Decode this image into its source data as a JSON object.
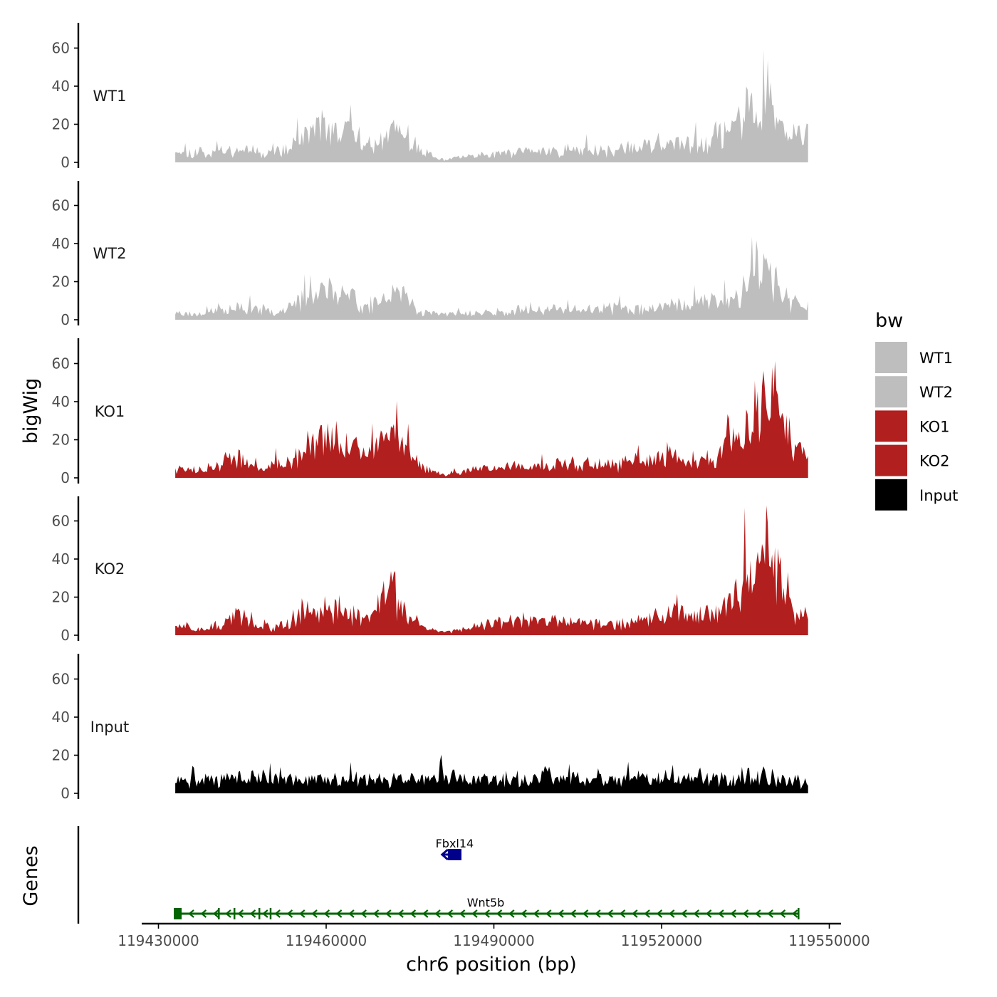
{
  "chart_data": {
    "type": "area",
    "title": "",
    "ylabel": "bigWig",
    "xlabel": "chr6 position (bp)",
    "ylim": [
      0,
      72
    ],
    "yticks": [
      0,
      20,
      40,
      60
    ],
    "xlim": [
      119425000,
      119550000
    ],
    "xticks": [
      119430000,
      119460000,
      119490000,
      119520000,
      119550000
    ],
    "xtick_labels": [
      "119430000",
      "119460000",
      "119490000",
      "119520000",
      "119550000"
    ],
    "data_range": [
      119433000,
      119546200
    ],
    "legend_title": "bw",
    "series": [
      {
        "name": "WT1",
        "color": "#bebebe",
        "profile": [
          [
            0,
            8
          ],
          [
            0.01,
            5
          ],
          [
            0.05,
            5
          ],
          [
            0.1,
            7
          ],
          [
            0.14,
            6
          ],
          [
            0.18,
            6
          ],
          [
            0.2,
            14
          ],
          [
            0.235,
            19
          ],
          [
            0.245,
            14
          ],
          [
            0.27,
            16
          ],
          [
            0.29,
            11
          ],
          [
            0.3,
            7
          ],
          [
            0.32,
            13
          ],
          [
            0.345,
            18
          ],
          [
            0.36,
            13
          ],
          [
            0.38,
            8
          ],
          [
            0.41,
            2
          ],
          [
            0.43,
            1
          ],
          [
            0.45,
            3
          ],
          [
            0.5,
            4
          ],
          [
            0.55,
            6
          ],
          [
            0.6,
            6
          ],
          [
            0.65,
            7
          ],
          [
            0.7,
            6
          ],
          [
            0.75,
            9
          ],
          [
            0.8,
            9
          ],
          [
            0.85,
            13
          ],
          [
            0.88,
            16
          ],
          [
            0.905,
            24
          ],
          [
            0.93,
            30
          ],
          [
            0.945,
            24
          ],
          [
            0.96,
            15
          ],
          [
            0.98,
            12
          ],
          [
            1,
            14
          ]
        ],
        "spikes": [
          [
            0.235,
            25
          ],
          [
            0.27,
            22
          ],
          [
            0.345,
            23
          ],
          [
            0.91,
            38
          ],
          [
            0.935,
            37
          ],
          [
            0.96,
            24
          ],
          [
            1,
            20
          ]
        ],
        "seed": 11
      },
      {
        "name": "WT2",
        "color": "#bebebe",
        "profile": [
          [
            0,
            4
          ],
          [
            0.03,
            3
          ],
          [
            0.05,
            4
          ],
          [
            0.1,
            6
          ],
          [
            0.14,
            5
          ],
          [
            0.18,
            5
          ],
          [
            0.2,
            11
          ],
          [
            0.235,
            14
          ],
          [
            0.26,
            14
          ],
          [
            0.28,
            12
          ],
          [
            0.3,
            6
          ],
          [
            0.32,
            10
          ],
          [
            0.345,
            13
          ],
          [
            0.37,
            10
          ],
          [
            0.39,
            4
          ],
          [
            0.42,
            3
          ],
          [
            0.45,
            3
          ],
          [
            0.5,
            4
          ],
          [
            0.55,
            4
          ],
          [
            0.6,
            5
          ],
          [
            0.65,
            5
          ],
          [
            0.7,
            6
          ],
          [
            0.75,
            6
          ],
          [
            0.8,
            8
          ],
          [
            0.85,
            10
          ],
          [
            0.88,
            11
          ],
          [
            0.905,
            18
          ],
          [
            0.93,
            25
          ],
          [
            0.945,
            20
          ],
          [
            0.965,
            11
          ],
          [
            0.98,
            7
          ],
          [
            1,
            5
          ]
        ],
        "spikes": [
          [
            0.235,
            20
          ],
          [
            0.28,
            17
          ],
          [
            0.345,
            16
          ],
          [
            0.935,
            35
          ],
          [
            0.95,
            28
          ],
          [
            0.98,
            14
          ]
        ],
        "seed": 23
      },
      {
        "name": "KO1",
        "color": "#b21f1f",
        "profile": [
          [
            0,
            6
          ],
          [
            0.03,
            3
          ],
          [
            0.05,
            5
          ],
          [
            0.08,
            7
          ],
          [
            0.1,
            10
          ],
          [
            0.12,
            6
          ],
          [
            0.14,
            5
          ],
          [
            0.18,
            8
          ],
          [
            0.2,
            15
          ],
          [
            0.23,
            20
          ],
          [
            0.26,
            17
          ],
          [
            0.3,
            13
          ],
          [
            0.33,
            16
          ],
          [
            0.345,
            22
          ],
          [
            0.37,
            12
          ],
          [
            0.4,
            4
          ],
          [
            0.42,
            2
          ],
          [
            0.45,
            3
          ],
          [
            0.5,
            5
          ],
          [
            0.55,
            6
          ],
          [
            0.6,
            7
          ],
          [
            0.65,
            7
          ],
          [
            0.7,
            7
          ],
          [
            0.75,
            9
          ],
          [
            0.8,
            11
          ],
          [
            0.83,
            9
          ],
          [
            0.85,
            8
          ],
          [
            0.87,
            16
          ],
          [
            0.9,
            26
          ],
          [
            0.93,
            36
          ],
          [
            0.955,
            28
          ],
          [
            0.97,
            16
          ],
          [
            0.99,
            12
          ],
          [
            1,
            9
          ]
        ],
        "spikes": [
          [
            0.23,
            28
          ],
          [
            0.345,
            30
          ],
          [
            0.08,
            14
          ],
          [
            0.93,
            56
          ],
          [
            0.95,
            46
          ],
          [
            0.985,
            20
          ]
        ],
        "seed": 37
      },
      {
        "name": "KO2",
        "color": "#b21f1f",
        "profile": [
          [
            0,
            5
          ],
          [
            0.03,
            4
          ],
          [
            0.05,
            4
          ],
          [
            0.08,
            7
          ],
          [
            0.1,
            10
          ],
          [
            0.12,
            6
          ],
          [
            0.14,
            4
          ],
          [
            0.18,
            5
          ],
          [
            0.2,
            11
          ],
          [
            0.23,
            15
          ],
          [
            0.26,
            14
          ],
          [
            0.29,
            10
          ],
          [
            0.31,
            12
          ],
          [
            0.345,
            22
          ],
          [
            0.365,
            12
          ],
          [
            0.39,
            5
          ],
          [
            0.42,
            2
          ],
          [
            0.45,
            3
          ],
          [
            0.5,
            6
          ],
          [
            0.55,
            7
          ],
          [
            0.6,
            7
          ],
          [
            0.65,
            6
          ],
          [
            0.7,
            6
          ],
          [
            0.75,
            8
          ],
          [
            0.8,
            12
          ],
          [
            0.83,
            10
          ],
          [
            0.85,
            10
          ],
          [
            0.88,
            18
          ],
          [
            0.91,
            32
          ],
          [
            0.935,
            40
          ],
          [
            0.955,
            30
          ],
          [
            0.97,
            14
          ],
          [
            0.99,
            10
          ],
          [
            1,
            11
          ]
        ],
        "spikes": [
          [
            0.345,
            33
          ],
          [
            0.1,
            14
          ],
          [
            0.935,
            70
          ],
          [
            0.92,
            44
          ],
          [
            0.79,
            17
          ],
          [
            0.84,
            17
          ]
        ],
        "seed": 51
      },
      {
        "name": "Input",
        "color": "#000000",
        "profile": [
          [
            0,
            6
          ],
          [
            0.05,
            7
          ],
          [
            0.1,
            8
          ],
          [
            0.2,
            7
          ],
          [
            0.3,
            7
          ],
          [
            0.4,
            7
          ],
          [
            0.45,
            8
          ],
          [
            0.5,
            7
          ],
          [
            0.6,
            8
          ],
          [
            0.7,
            7
          ],
          [
            0.8,
            7
          ],
          [
            0.9,
            8
          ],
          [
            0.95,
            8
          ],
          [
            1,
            6
          ]
        ],
        "spikes": [
          [
            0.42,
            22
          ],
          [
            0.028,
            16
          ],
          [
            0.93,
            15
          ],
          [
            0.44,
            13
          ],
          [
            0.585,
            14
          ]
        ],
        "seed": 71
      }
    ],
    "genes": [
      {
        "name": "Fbxl14",
        "start": 119481000,
        "end": 119484200,
        "strand": "-",
        "color": "#00008b",
        "row": 1
      },
      {
        "name": "Wnt5b",
        "start": 119433000,
        "end": 119544500,
        "strand": "-",
        "color": "#006400",
        "row": 2
      }
    ],
    "genes_track_label": "Genes"
  }
}
